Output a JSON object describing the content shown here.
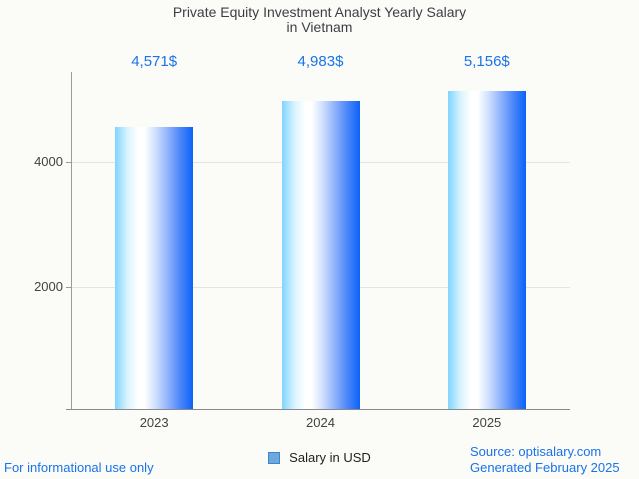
{
  "title": {
    "line1": "Private Equity Investment Analyst Yearly Salary",
    "line2": "in Vietnam"
  },
  "chart_data": {
    "type": "bar",
    "title": "Private Equity Investment Analyst Yearly Salary in Vietnam",
    "categories": [
      "2023",
      "2024",
      "2025"
    ],
    "values": [
      4571,
      4983,
      5156
    ],
    "value_labels": [
      "4,571$",
      "4,983$",
      "5,156$"
    ],
    "series_name": "Salary in USD",
    "xlabel": "",
    "ylabel": "",
    "ylim": [
      0,
      5470
    ],
    "yticks": [
      {
        "value": 2000,
        "label": "2000"
      },
      {
        "value": 4000,
        "label": "4000"
      }
    ],
    "grid": "horizontal",
    "legend_position": "bottom-center"
  },
  "legend": {
    "label": "Salary in USD"
  },
  "footer": {
    "left": "For informational use only",
    "source": "Source: optisalary.com",
    "generated": "Generated February 2025"
  },
  "colors": {
    "background": "#fbfbf8",
    "accent_blue": "#1a73e8",
    "title_text": "#3c4043",
    "axis_text": "#424242",
    "gridline": "#e4e4e4",
    "axis_line": "#9b9b9b",
    "baseline": "#8a8a8a",
    "bar_gradient_left": "#7fd4fd",
    "bar_gradient_mid": "#ffffff",
    "bar_gradient_right": "#0b63f8",
    "legend_swatch_fill": "#6fa8dc",
    "legend_swatch_border": "#3d85c6"
  }
}
